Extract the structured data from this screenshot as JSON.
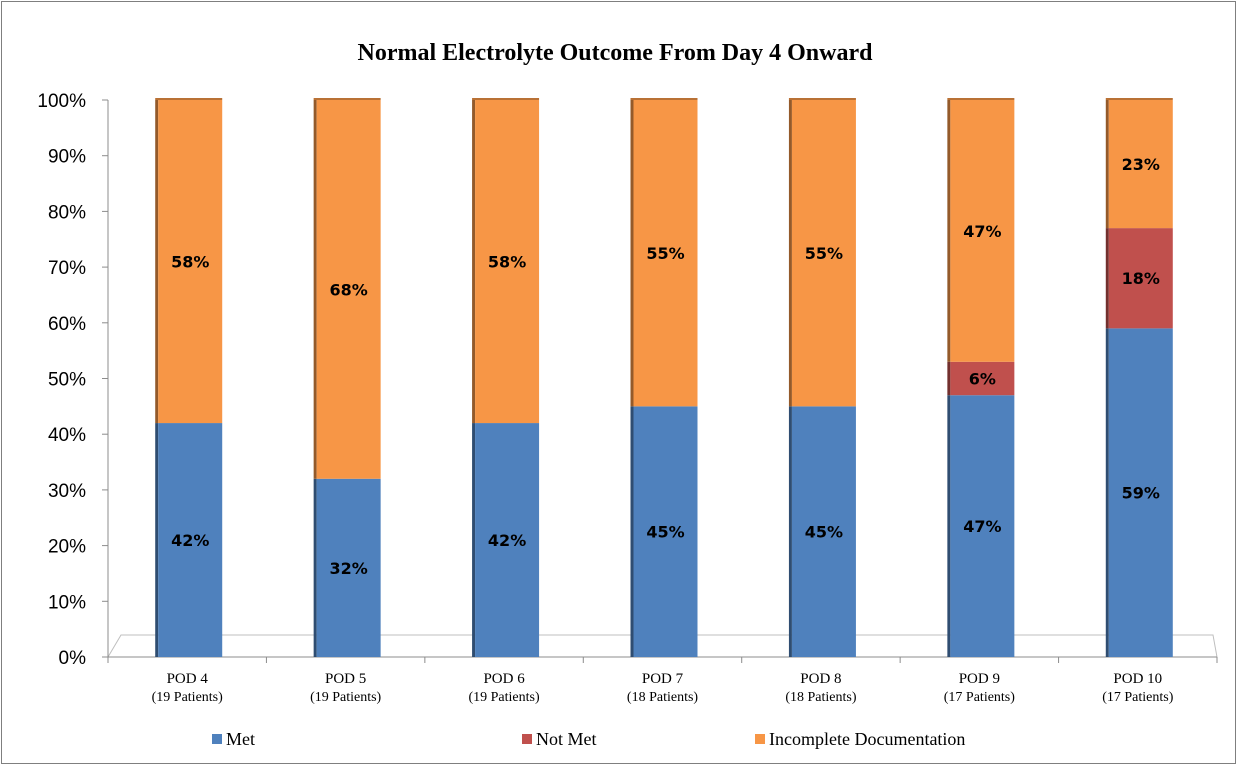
{
  "chart_data": {
    "type": "bar",
    "stacked": true,
    "title": "Normal Electrolyte Outcome From Day 4 Onward",
    "categories": [
      "POD 4",
      "POD 5",
      "POD 6",
      "POD 7",
      "POD 8",
      "POD 9",
      "POD 10"
    ],
    "category_sublabels": [
      "(19 Patients)",
      "(19 Patients)",
      "(19 Patients)",
      "(18 Patients)",
      "(18 Patients)",
      "(17 Patients)",
      "(17 Patients)"
    ],
    "series": [
      {
        "name": "Met",
        "color": "#4f81bd",
        "values": [
          42,
          32,
          42,
          45,
          45,
          47,
          59
        ],
        "labels": [
          "42%",
          "32%",
          "42%",
          "45%",
          "45%",
          "47%",
          "59%"
        ]
      },
      {
        "name": "Not Met",
        "color": "#c0504d",
        "values": [
          0,
          0,
          0,
          0,
          0,
          6,
          18
        ],
        "labels": [
          "",
          "",
          "",
          "",
          "",
          "6%",
          "18%"
        ]
      },
      {
        "name": "Incomplete Documentation",
        "color": "#f79646",
        "values": [
          58,
          68,
          58,
          55,
          55,
          47,
          23
        ],
        "labels": [
          "58%",
          "68%",
          "58%",
          "55%",
          "55%",
          "47%",
          "23%"
        ]
      }
    ],
    "ylim": [
      0,
      100
    ],
    "yticks": [
      "0%",
      "10%",
      "20%",
      "30%",
      "40%",
      "50%",
      "60%",
      "70%",
      "80%",
      "90%",
      "100%"
    ],
    "xlabel": "",
    "ylabel": "",
    "legend_position": "bottom",
    "grid": false
  }
}
